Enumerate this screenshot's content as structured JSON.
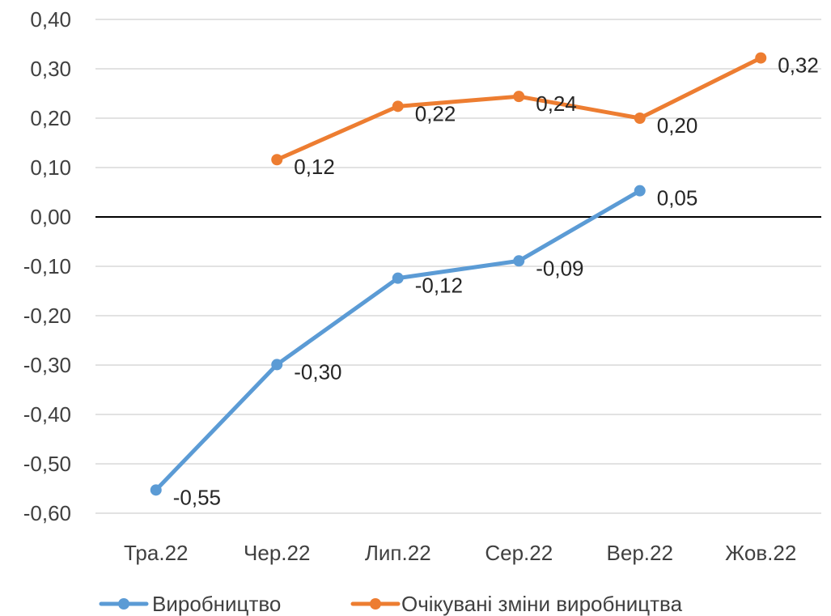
{
  "chart_data": {
    "type": "line",
    "title": "",
    "xlabel": "",
    "ylabel": "",
    "categories": [
      "Тра.22",
      "Чер.22",
      "Лип.22",
      "Сер.22",
      "Вер.22",
      "Жов.22"
    ],
    "ylim": [
      -0.6,
      0.4
    ],
    "yticks": [
      0.4,
      0.3,
      0.2,
      0.1,
      0.0,
      -0.1,
      -0.2,
      -0.3,
      -0.4,
      -0.5,
      -0.6
    ],
    "ytick_labels": [
      "0,40",
      "0,30",
      "0,20",
      "0,10",
      "0,00",
      "-0,10",
      "-0,20",
      "-0,30",
      "-0,40",
      "-0,50",
      "-0,60"
    ],
    "grid": true,
    "legend_position": "bottom",
    "series": [
      {
        "name": "Виробництво",
        "color": "#5B9BD5",
        "values": [
          -0.553,
          -0.299,
          -0.124,
          -0.089,
          0.053,
          null
        ],
        "labels": [
          "-0,55",
          "-0,30",
          "-0,12",
          "-0,09",
          "0,05",
          ""
        ]
      },
      {
        "name": "Очікувані зміни виробництва",
        "color": "#ED7D31",
        "values": [
          null,
          0.116,
          0.224,
          0.244,
          0.2,
          0.322
        ],
        "labels": [
          "",
          "0,12",
          "0,22",
          "0,24",
          "0,20",
          "0,32"
        ]
      }
    ]
  }
}
